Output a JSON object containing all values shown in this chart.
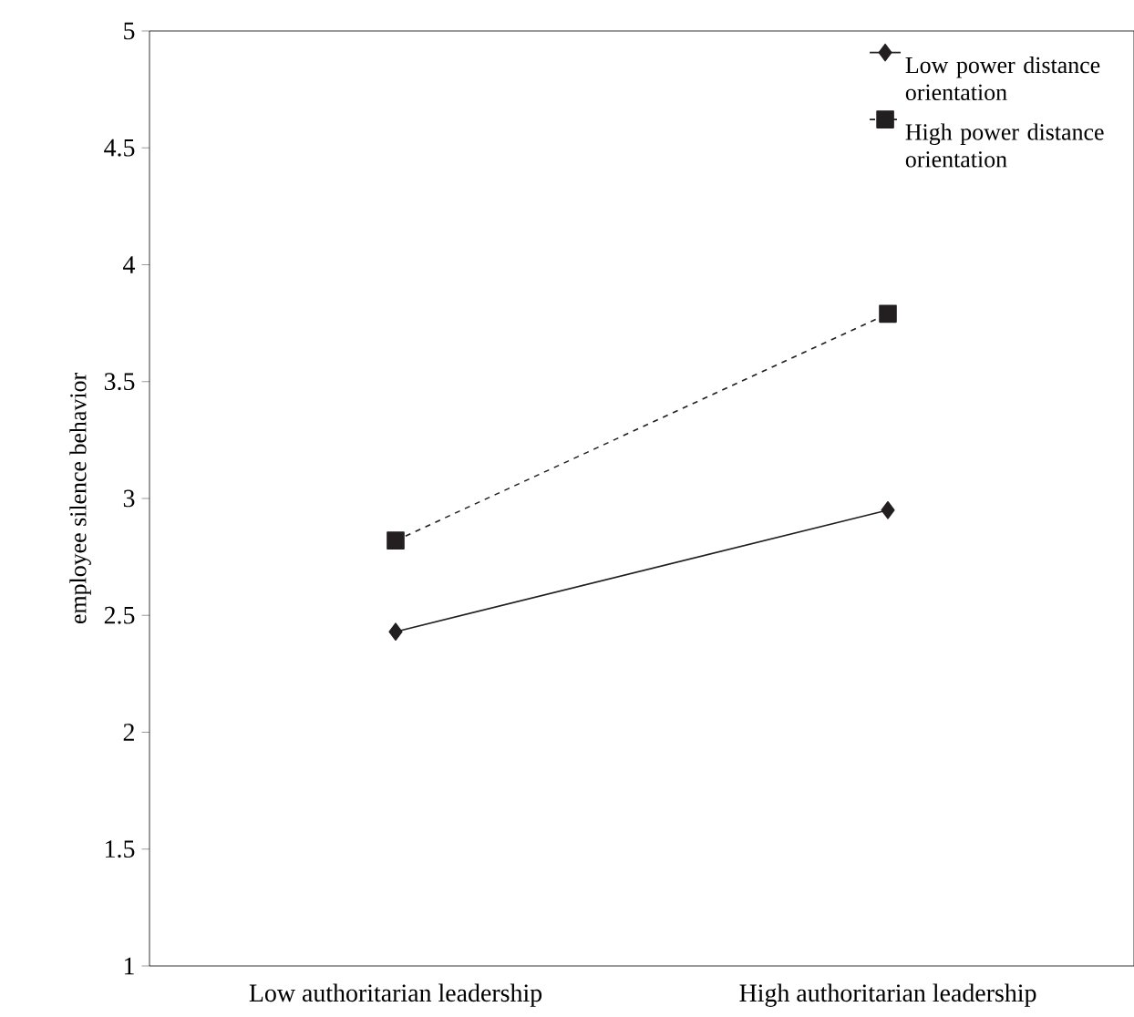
{
  "chart_data": {
    "type": "line",
    "ylabel": "employee silence behavior",
    "categories": [
      "Low authoritarian leadership",
      "High authoritarian leadership"
    ],
    "series": [
      {
        "name": "Low power distance orientation",
        "color": "#231f20",
        "values": [
          2.43,
          2.95
        ],
        "marker": "diamond",
        "line_style": "solid"
      },
      {
        "name": "High power distance orientation",
        "color": "#231f20",
        "values": [
          2.82,
          3.79
        ],
        "marker": "square",
        "line_style": "dashed"
      }
    ],
    "ylim": [
      1,
      5
    ],
    "yticks": [
      1,
      1.5,
      2,
      2.5,
      3,
      3.5,
      4,
      4.5,
      5
    ],
    "legend": "top right",
    "grid": false
  }
}
